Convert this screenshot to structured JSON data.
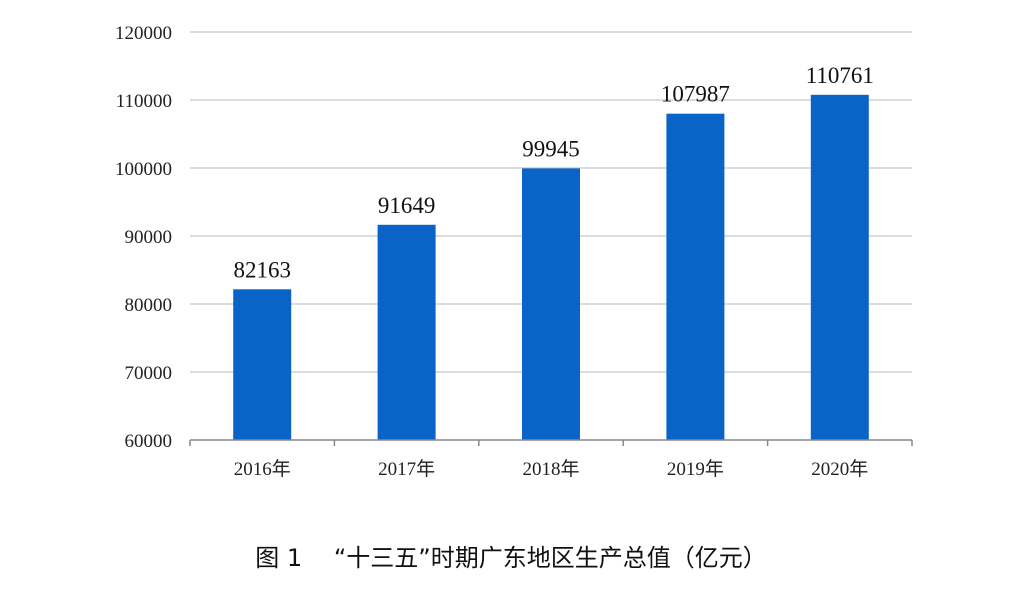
{
  "caption": "图 1　 “十三五”时期广东地区生产总值（亿元）",
  "chart_data": {
    "type": "bar",
    "categories": [
      "2016年",
      "2017年",
      "2018年",
      "2019年",
      "2020年"
    ],
    "values": [
      82163,
      91649,
      99945,
      107987,
      110761
    ],
    "data_labels": [
      "82163",
      "91649",
      "99945",
      "107987",
      "110761"
    ],
    "ylim": [
      60000,
      120000
    ],
    "yticks": [
      "60000",
      "70000",
      "80000",
      "90000",
      "100000",
      "110000",
      "120000"
    ],
    "grid": true,
    "bar_color": "#0a64c8",
    "grid_color": "#d0d0d0",
    "axis_color": "#888888"
  }
}
